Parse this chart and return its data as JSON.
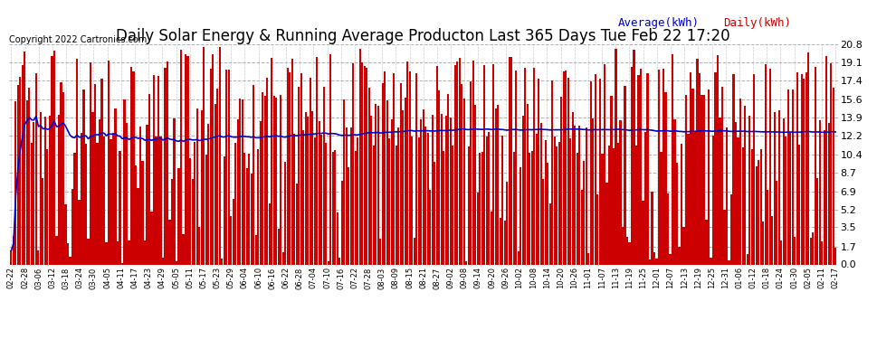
{
  "title": "Daily Solar Energy & Running Average Producton Last 365 Days Tue Feb 22 17:20",
  "copyright": "Copyright 2022 Cartronics.com",
  "legend_avg": "Average(kWh)",
  "legend_daily": "Daily(kWh)",
  "bar_color": "#cc0000",
  "avg_line_color": "#0000cc",
  "background_color": "#ffffff",
  "plot_bg_color": "#ffffff",
  "grid_color": "#aaaaaa",
  "title_fontsize": 12,
  "yticks": [
    0.0,
    1.7,
    3.5,
    5.2,
    6.9,
    8.7,
    10.4,
    12.2,
    13.9,
    15.6,
    17.4,
    19.1,
    20.8
  ],
  "ylim": [
    0.0,
    20.8
  ],
  "xtick_labels": [
    "02-22",
    "02-28",
    "03-06",
    "03-12",
    "03-18",
    "03-24",
    "03-30",
    "04-05",
    "04-11",
    "04-17",
    "04-23",
    "04-29",
    "05-05",
    "05-11",
    "05-17",
    "05-23",
    "05-29",
    "06-04",
    "06-10",
    "06-16",
    "06-22",
    "06-28",
    "07-04",
    "07-10",
    "07-16",
    "07-22",
    "07-28",
    "08-03",
    "08-09",
    "08-15",
    "08-21",
    "08-27",
    "09-02",
    "09-08",
    "09-14",
    "09-20",
    "09-26",
    "10-02",
    "10-08",
    "10-14",
    "10-20",
    "10-26",
    "11-01",
    "11-07",
    "11-13",
    "11-19",
    "11-25",
    "12-01",
    "12-07",
    "12-13",
    "12-19",
    "12-25",
    "12-31",
    "01-06",
    "01-12",
    "01-18",
    "01-24",
    "01-30",
    "02-05",
    "02-11",
    "02-17"
  ],
  "n_days": 365,
  "copyright_fontsize": 7,
  "legend_fontsize": 9,
  "ytick_fontsize": 8,
  "xtick_fontsize": 6
}
